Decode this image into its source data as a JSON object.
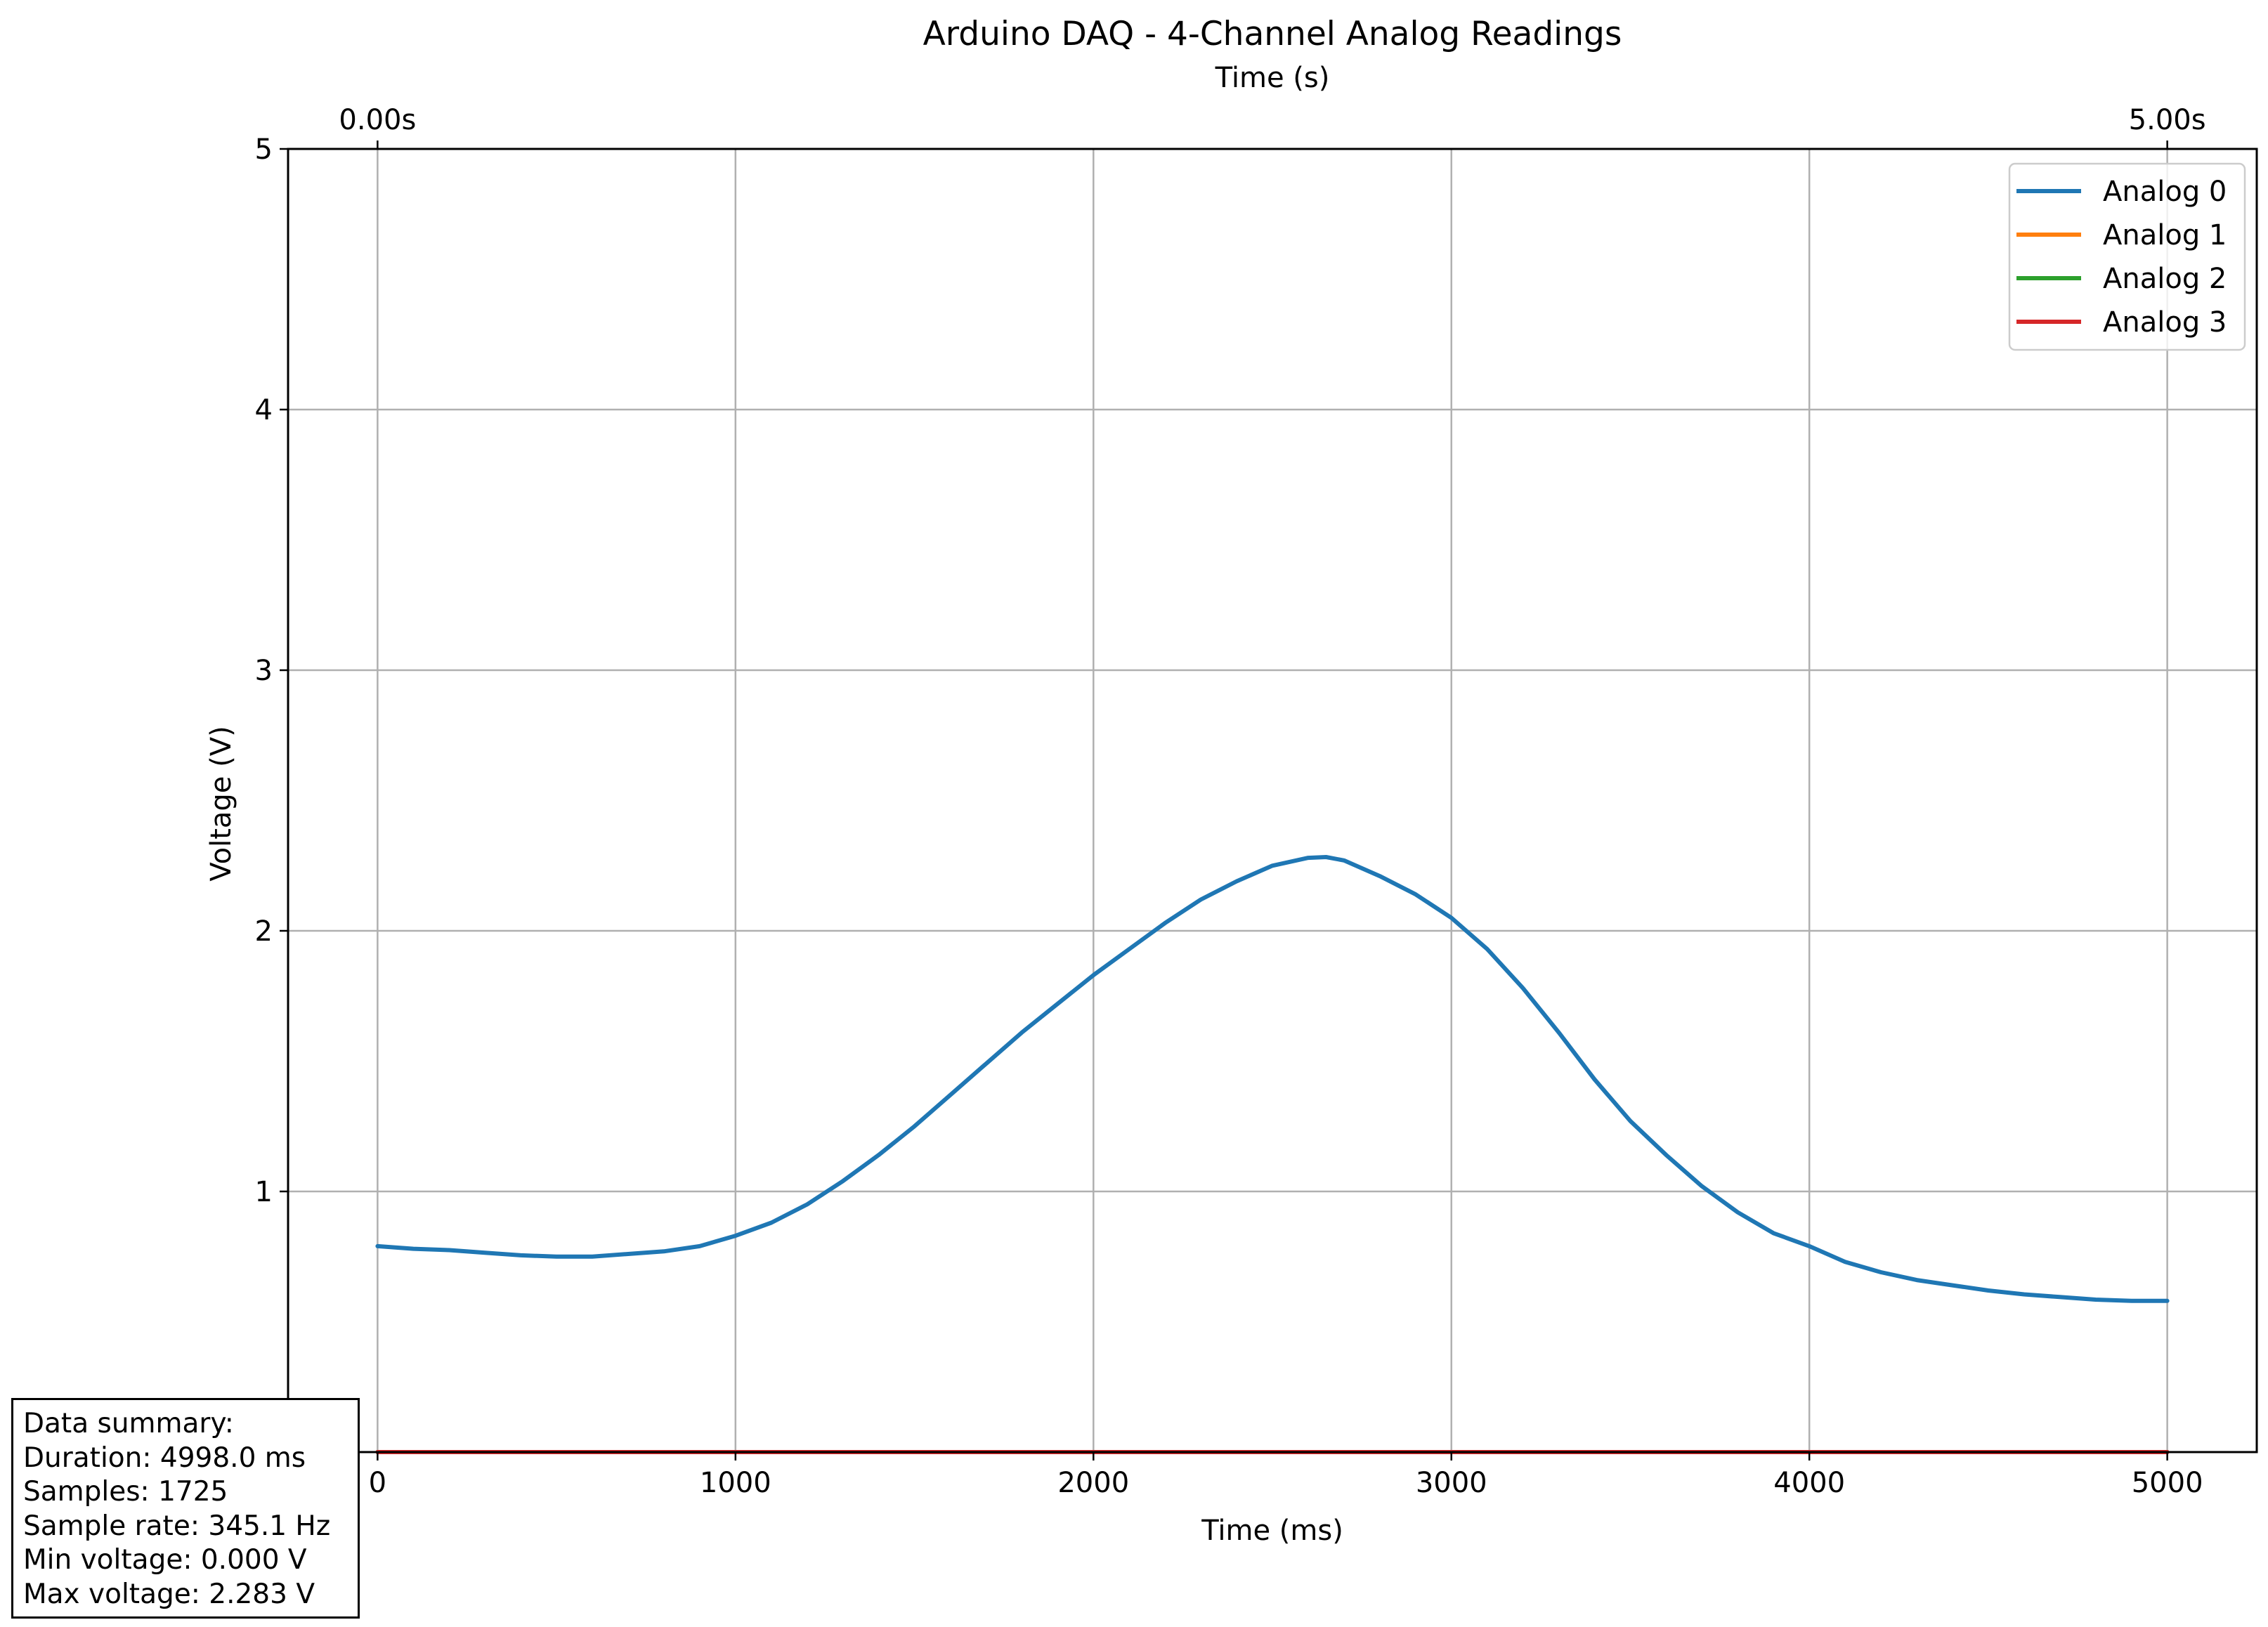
{
  "chart_data": {
    "type": "line",
    "title": "Arduino DAQ - 4-Channel Analog Readings",
    "xlabel": "Time (ms)",
    "ylabel": "Voltage (V)",
    "xlim": [
      -250,
      5250
    ],
    "ylim": [
      0,
      5
    ],
    "x_ticks": [
      0,
      1000,
      2000,
      3000,
      4000,
      5000
    ],
    "x_tick_labels": [
      "0",
      "1000",
      "2000",
      "3000",
      "4000",
      "5000"
    ],
    "y_ticks": [
      1,
      2,
      3,
      4,
      5
    ],
    "y_tick_labels": [
      "1",
      "2",
      "3",
      "4",
      "5"
    ],
    "secondary_x_axis": {
      "label": "Time (s)",
      "ticks": [
        0,
        5000
      ],
      "tick_labels": [
        "0.00s",
        "5.00s"
      ]
    },
    "grid": true,
    "legend_position": "top-right",
    "series": [
      {
        "name": "Analog 0",
        "color": "#1f77b4",
        "x": [
          0,
          100,
          200,
          300,
          400,
          500,
          600,
          700,
          800,
          900,
          1000,
          1100,
          1200,
          1300,
          1400,
          1500,
          1600,
          1700,
          1800,
          1900,
          2000,
          2100,
          2200,
          2300,
          2400,
          2500,
          2600,
          2650,
          2700,
          2800,
          2900,
          3000,
          3100,
          3200,
          3300,
          3400,
          3500,
          3600,
          3700,
          3800,
          3900,
          4000,
          4100,
          4150,
          4200,
          4300,
          4400,
          4500,
          4600,
          4700,
          4800,
          4900,
          5000
        ],
        "values": [
          0.79,
          0.78,
          0.775,
          0.765,
          0.755,
          0.75,
          0.75,
          0.76,
          0.77,
          0.79,
          0.83,
          0.88,
          0.95,
          1.04,
          1.14,
          1.25,
          1.37,
          1.49,
          1.61,
          1.72,
          1.83,
          1.93,
          2.03,
          2.12,
          2.19,
          2.25,
          2.28,
          2.283,
          2.27,
          2.21,
          2.14,
          2.05,
          1.93,
          1.78,
          1.61,
          1.43,
          1.27,
          1.14,
          1.02,
          0.92,
          0.84,
          0.79,
          0.73,
          0.71,
          0.69,
          0.66,
          0.64,
          0.62,
          0.605,
          0.595,
          0.585,
          0.58,
          0.58
        ]
      },
      {
        "name": "Analog 1",
        "color": "#ff7f0e",
        "x": [
          0,
          5000
        ],
        "values": [
          0,
          0
        ]
      },
      {
        "name": "Analog 2",
        "color": "#2ca02c",
        "x": [
          0,
          5000
        ],
        "values": [
          0,
          0
        ]
      },
      {
        "name": "Analog 3",
        "color": "#d62728",
        "x": [
          0,
          5000
        ],
        "values": [
          0,
          0
        ]
      }
    ]
  },
  "summary": {
    "heading": "Data summary:",
    "duration": "Duration: 4998.0 ms",
    "samples": "Samples: 1725",
    "sample_rate": "Sample rate: 345.1 Hz",
    "min_voltage": "Min voltage: 0.000 V",
    "max_voltage": "Max voltage: 2.283 V"
  }
}
